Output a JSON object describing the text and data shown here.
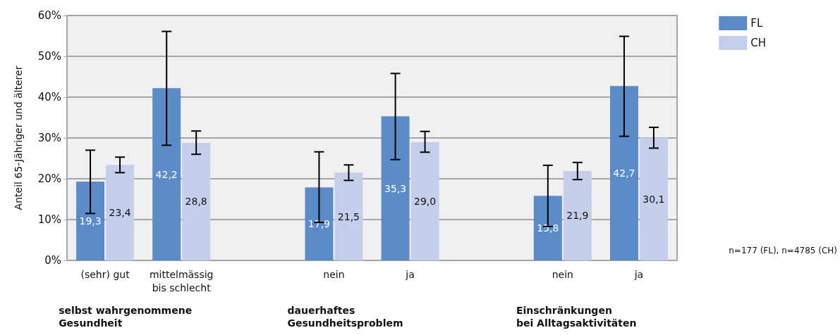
{
  "chart_data": {
    "type": "bar",
    "ylabel": "Anteil 65-Jähriger und älterer",
    "categories": [
      "(sehr) gut",
      "mittelmässig\nbis schlecht",
      null,
      "nein",
      "ja",
      null,
      "nein",
      "ja"
    ],
    "series": [
      {
        "name": "FL",
        "color": "#5b8bc8",
        "values": [
          19.3,
          42.2,
          null,
          17.9,
          35.3,
          null,
          15.8,
          42.7
        ],
        "value_labels": [
          "19,3",
          "42,2",
          null,
          "17,9",
          "35,3",
          null,
          "15,8",
          "42,7"
        ],
        "errors": [
          [
            11.5,
            27
          ],
          [
            28.2,
            56.1
          ],
          null,
          [
            9.3,
            26.6
          ],
          [
            24.7,
            45.8
          ],
          null,
          [
            8.3,
            23.3
          ],
          [
            30.4,
            54.9
          ]
        ]
      },
      {
        "name": "CH",
        "color": "#c5cfec",
        "values": [
          23.4,
          28.8,
          null,
          21.5,
          29.0,
          null,
          21.9,
          30.1
        ],
        "value_labels": [
          "23,4",
          "28,8",
          null,
          "21,5",
          "29,0",
          null,
          "21,9",
          "30,1"
        ],
        "errors": [
          [
            21.5,
            25.3
          ],
          [
            26,
            31.7
          ],
          null,
          [
            19.6,
            23.4
          ],
          [
            26.5,
            31.6
          ],
          null,
          [
            19.8,
            24
          ],
          [
            27.5,
            32.6
          ]
        ]
      }
    ],
    "ylim": [
      0,
      60
    ],
    "yticks": [
      {
        "value": 0,
        "label": "0%"
      },
      {
        "value": 10,
        "label": "10%"
      },
      {
        "value": 20,
        "label": "20%"
      },
      {
        "value": 30,
        "label": "30%"
      },
      {
        "value": 40,
        "label": "40%"
      },
      {
        "value": 50,
        "label": "50%"
      },
      {
        "value": 60,
        "label": "60%"
      }
    ],
    "grid": "y",
    "legend": "top right",
    "annotations": [
      "selbst wahrgenommene\nGesundheit",
      "dauerhaftes\nGesundheitsproblem",
      "Einschränkungen\nbei Alltagsaktivitäten",
      "n=177 (FL), n=4785 (CH)"
    ]
  }
}
